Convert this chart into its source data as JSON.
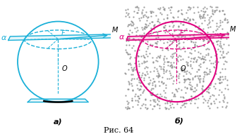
{
  "fig_width": 3.36,
  "fig_height": 1.91,
  "dpi": 100,
  "bg_color": "#ffffff",
  "cyan": "#1ab0d8",
  "magenta": "#e0007f",
  "dot_color": "#999999",
  "caption": "Рис. 64",
  "label_a": "а)",
  "label_b": "б)"
}
